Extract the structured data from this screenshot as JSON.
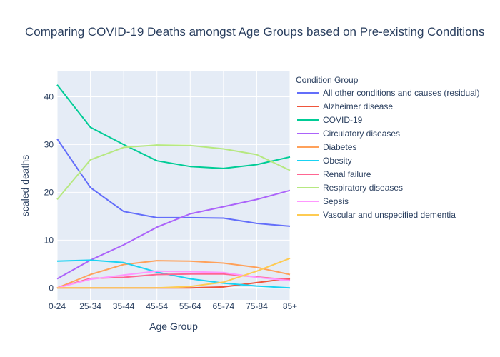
{
  "chart_data": {
    "type": "line",
    "title": "Comparing COVID-19 Deaths amongst Age Groups based on Pre-existing Conditions",
    "xlabel": "Age Group",
    "ylabel": "scaled deaths",
    "legend_title": "Condition Group",
    "legend_position": "right",
    "grid": true,
    "categories": [
      "0-24",
      "25-34",
      "35-44",
      "45-54",
      "55-64",
      "65-74",
      "75-84",
      "85+"
    ],
    "ylim": [
      -2.5,
      45.3
    ],
    "yticks": [
      0,
      10,
      20,
      30,
      40
    ],
    "series": [
      {
        "name": "All other conditions and causes (residual)",
        "color": "#636efa",
        "values": [
          31.2,
          21.0,
          16.0,
          14.7,
          14.7,
          14.6,
          13.5,
          12.9
        ]
      },
      {
        "name": "Alzheimer disease",
        "color": "#ef553b",
        "values": [
          0,
          0,
          0,
          0,
          0,
          0.2,
          1.1,
          2.0
        ]
      },
      {
        "name": "COVID-19",
        "color": "#00cc96",
        "values": [
          42.5,
          33.6,
          30.0,
          26.6,
          25.4,
          25.0,
          25.8,
          27.4
        ]
      },
      {
        "name": "Circulatory diseases",
        "color": "#ab63fa",
        "values": [
          1.9,
          5.8,
          9.0,
          12.7,
          15.5,
          17.0,
          18.5,
          20.4
        ]
      },
      {
        "name": "Diabetes",
        "color": "#ffa15a",
        "values": [
          0,
          2.8,
          4.9,
          5.7,
          5.6,
          5.2,
          4.3,
          2.8
        ]
      },
      {
        "name": "Obesity",
        "color": "#19d3f3",
        "values": [
          5.6,
          5.8,
          5.3,
          3.3,
          1.9,
          1.0,
          0.4,
          0.0
        ]
      },
      {
        "name": "Renal failure",
        "color": "#ff6692",
        "values": [
          0,
          2.0,
          2.2,
          2.8,
          2.9,
          2.9,
          2.3,
          1.7
        ]
      },
      {
        "name": "Respiratory diseases",
        "color": "#b6e880",
        "values": [
          18.5,
          26.8,
          29.4,
          29.9,
          29.8,
          29.1,
          27.9,
          24.6
        ]
      },
      {
        "name": "Sepsis",
        "color": "#ff97ff",
        "values": [
          0,
          1.8,
          2.7,
          3.5,
          3.4,
          3.2,
          2.2,
          1.5
        ]
      },
      {
        "name": "Vascular and unspecified dementia",
        "color": "#fecb52",
        "values": [
          0,
          0,
          0,
          0,
          0.3,
          1.2,
          3.5,
          6.2
        ]
      }
    ]
  }
}
